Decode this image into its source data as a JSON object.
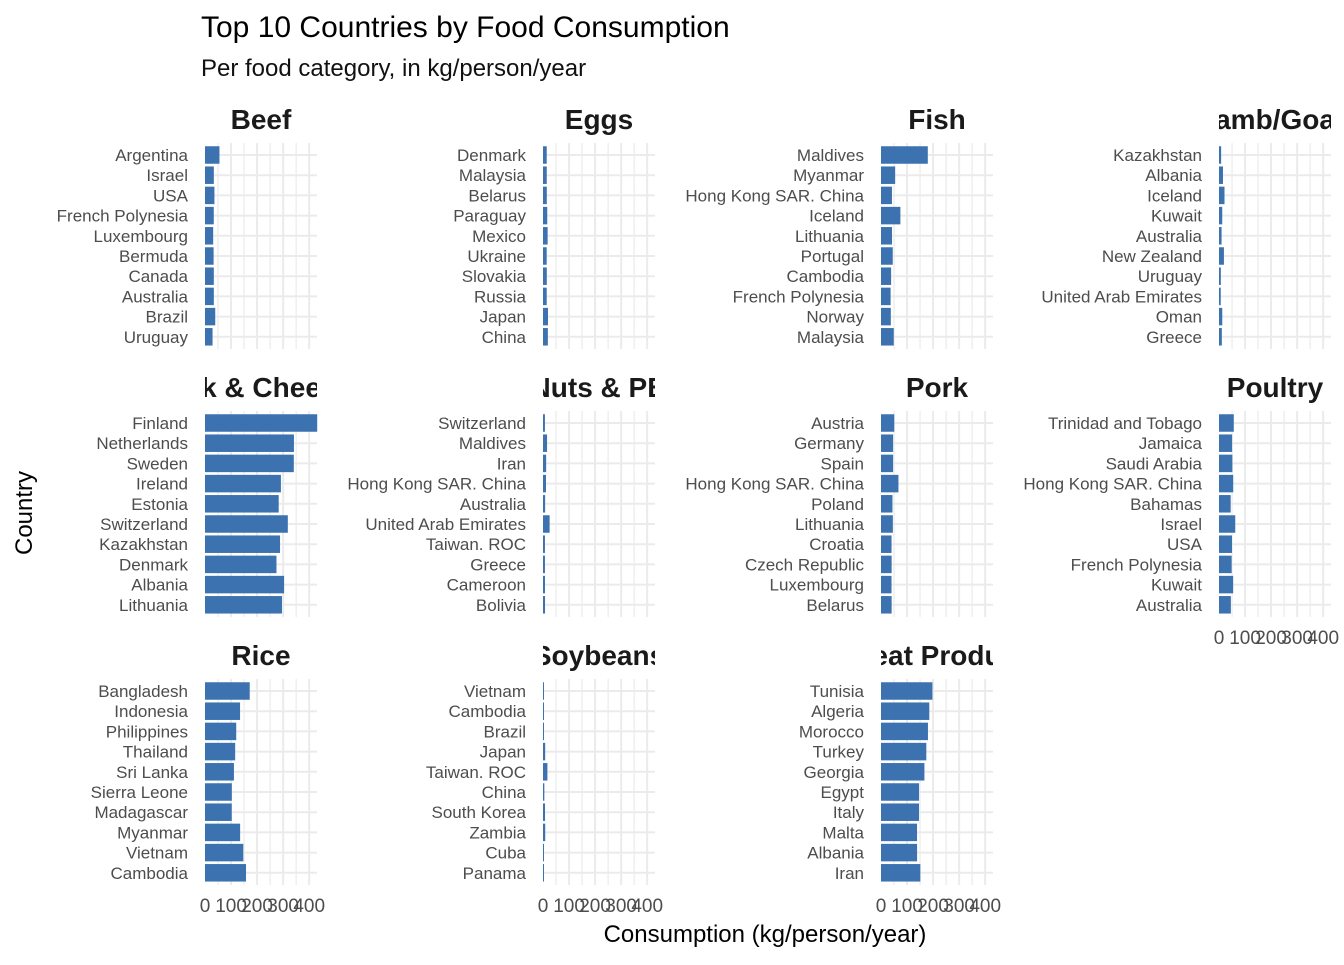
{
  "chart_data": {
    "type": "bar",
    "orientation": "horizontal",
    "title": "Top 10 Countries by Food Consumption",
    "subtitle": "Per food category, in kg/person/year",
    "xlabel": "Consumption (kg/person/year)",
    "ylabel": "Country",
    "xlim": [
      0,
      430
    ],
    "xticks": [
      0,
      100,
      200,
      300,
      400
    ],
    "xtick_labels": [
      "0",
      "100",
      "200",
      "300",
      "400"
    ],
    "grid": true,
    "bar_color": "#3C72B0",
    "grid_color": "#EBEBEB",
    "facets": [
      {
        "name": "Beef",
        "label": "Beef",
        "categories": [
          "Argentina",
          "Israel",
          "USA",
          "French Polynesia",
          "Luxembourg",
          "Bermuda",
          "Canada",
          "Australia",
          "Brazil",
          "Uruguay"
        ],
        "values": [
          55.5,
          33.9,
          36.2,
          33.7,
          31.4,
          33.1,
          33.9,
          33.9,
          39.3,
          29.0
        ]
      },
      {
        "name": "Eggs",
        "label": "Eggs",
        "categories": [
          "Denmark",
          "Malaysia",
          "Belarus",
          "Paraguay",
          "Mexico",
          "Ukraine",
          "Slovakia",
          "Russia",
          "Japan",
          "China"
        ],
        "values": [
          14.3,
          14.4,
          14.6,
          16.3,
          17.8,
          14.2,
          14.6,
          14.3,
          19.2,
          18.7
        ]
      },
      {
        "name": "Fish",
        "label": "Fish",
        "categories": [
          "Maldives",
          "Myanmar",
          "Hong Kong SAR. China",
          "Iceland",
          "Lithuania",
          "Portugal",
          "Cambodia",
          "French Polynesia",
          "Norway",
          "Malaysia"
        ],
        "values": [
          179.7,
          54.4,
          42.1,
          74.4,
          42.3,
          45.1,
          38.8,
          36.9,
          37.7,
          49.0
        ]
      },
      {
        "name": "Lamb/Goat",
        "label": "amb/Goa",
        "categories": [
          "Kazakhstan",
          "Albania",
          "Iceland",
          "Kuwait",
          "Australia",
          "New Zealand",
          "Uruguay",
          "United Arab Emirates",
          "Oman",
          "Greece"
        ],
        "values": [
          8.2,
          15.3,
          21.1,
          12.4,
          9.9,
          18.9,
          7.0,
          6.7,
          12.6,
          10.9
        ]
      },
      {
        "name": "Milk & Cheese",
        "label": "k & Chee",
        "categories": [
          "Finland",
          "Netherlands",
          "Sweden",
          "Ireland",
          "Estonia",
          "Switzerland",
          "Kazakhstan",
          "Denmark",
          "Albania",
          "Lithuania"
        ],
        "values": [
          430.8,
          341.5,
          341.0,
          291.4,
          283.0,
          318.0,
          288.1,
          274.4,
          303.7,
          295.5
        ]
      },
      {
        "name": "Nuts & Peanut Butter",
        "label": "Nuts & PB",
        "categories": [
          "Switzerland",
          "Maldives",
          "Iran",
          "Hong Kong SAR. China",
          "Australia",
          "United Arab Emirates",
          "Taiwan. ROC",
          "Greece",
          "Cameroon",
          "Bolivia"
        ],
        "values": [
          7.4,
          15.6,
          12.1,
          11.5,
          8.2,
          25.4,
          7.5,
          7.5,
          7.6,
          7.8
        ]
      },
      {
        "name": "Pork",
        "label": "Pork",
        "categories": [
          "Austria",
          "Germany",
          "Spain",
          "Hong Kong SAR. China",
          "Poland",
          "Lithuania",
          "Croatia",
          "Czech Republic",
          "Luxembourg",
          "Belarus"
        ],
        "values": [
          51.0,
          46.5,
          46.5,
          67.0,
          44.0,
          45.5,
          40.5,
          40.8,
          40.4,
          40.8
        ]
      },
      {
        "name": "Poultry",
        "label": "Poultry",
        "categories": [
          "Trinidad and Tobago",
          "Jamaica",
          "Saudi Arabia",
          "Hong Kong SAR. China",
          "Bahamas",
          "Israel",
          "USA",
          "French Polynesia",
          "Kuwait",
          "Australia"
        ],
        "values": [
          56.8,
          50.4,
          51.4,
          54.6,
          44.8,
          62.4,
          50.0,
          48.6,
          54.4,
          45.5
        ]
      },
      {
        "name": "Rice",
        "label": "Rice",
        "categories": [
          "Bangladesh",
          "Indonesia",
          "Philippines",
          "Thailand",
          "Sri Lanka",
          "Sierra Leone",
          "Madagascar",
          "Myanmar",
          "Vietnam",
          "Cambodia"
        ],
        "values": [
          171.7,
          134.6,
          119.9,
          115.8,
          111.1,
          103.0,
          102.7,
          134.9,
          147.1,
          157.5
        ]
      },
      {
        "name": "Soybeans",
        "label": "Soybeans",
        "categories": [
          "Vietnam",
          "Cambodia",
          "Brazil",
          "Japan",
          "Taiwan. ROC",
          "China",
          "South Korea",
          "Zambia",
          "Cuba",
          "Panama"
        ],
        "values": [
          3.8,
          2.7,
          2.9,
          8.4,
          16.9,
          5.1,
          7.8,
          8.6,
          2.6,
          2.8
        ]
      },
      {
        "name": "Wheat and Wheat Products",
        "label": "eat Produ",
        "categories": [
          "Tunisia",
          "Algeria",
          "Morocco",
          "Turkey",
          "Georgia",
          "Egypt",
          "Italy",
          "Malta",
          "Albania",
          "Iran"
        ],
        "values": [
          197.5,
          185.4,
          180.3,
          174.0,
          166.7,
          146.1,
          146.0,
          138.4,
          138.6,
          151.0
        ]
      }
    ]
  }
}
